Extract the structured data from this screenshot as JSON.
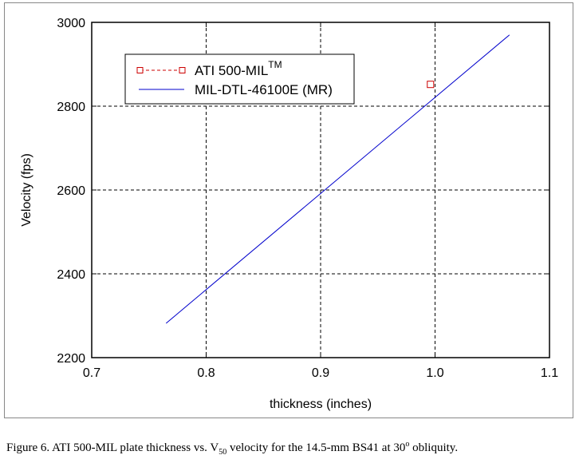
{
  "chart_data": {
    "type": "line",
    "title": "",
    "xlabel": "thickness (inches)",
    "ylabel": "Velocity (fps)",
    "xlim": [
      0.7,
      1.1
    ],
    "ylim": [
      2200,
      3000
    ],
    "xticks": [
      "0.7",
      "0.8",
      "0.9",
      "1.0",
      "1.1"
    ],
    "yticks": [
      "2200",
      "2400",
      "2600",
      "2800",
      "3000"
    ],
    "grid": true,
    "legend_position": "top-left",
    "series": [
      {
        "name": "ATI 500-MIL",
        "name_superscript": "TM",
        "style": "marker",
        "marker": "square",
        "color": "#cc0000",
        "points": [
          {
            "x": 0.996,
            "y": 2852
          }
        ]
      },
      {
        "name": "MIL-DTL-46100E (MR)",
        "style": "line",
        "color": "#0000cc",
        "points": [
          {
            "x": 0.765,
            "y": 2282
          },
          {
            "x": 1.065,
            "y": 2970
          }
        ]
      }
    ]
  },
  "caption": {
    "prefix": "Figure 6.  ATI 500-MIL plate thickness vs. V",
    "subscript": "50",
    "middle": " velocity for the 14.5-mm BS41 at 30",
    "superscript": "o",
    "suffix": " obliquity."
  }
}
